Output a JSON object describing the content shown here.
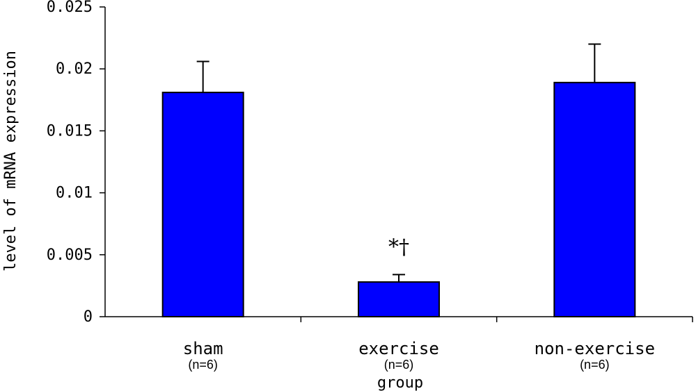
{
  "chart_data": {
    "type": "bar",
    "title": "",
    "xlabel": "group",
    "ylabel": "level of mRNA expression",
    "ylim": [
      0,
      0.025
    ],
    "yticks": [
      "0",
      "0.005",
      "0.01",
      "0.015",
      "0.02",
      "0.025"
    ],
    "categories": [
      "sham",
      "exercise",
      "non-exercise"
    ],
    "sample_sizes": [
      "(n=6)",
      "(n=6)",
      "(n=6)"
    ],
    "values": [
      0.0181,
      0.0028,
      0.0189
    ],
    "errors": [
      0.0025,
      0.0006,
      0.0031
    ],
    "annotations": [
      {
        "category": "exercise",
        "text": "*†"
      }
    ],
    "bar_color": "#0000FF",
    "grid": false,
    "legend": "none"
  }
}
